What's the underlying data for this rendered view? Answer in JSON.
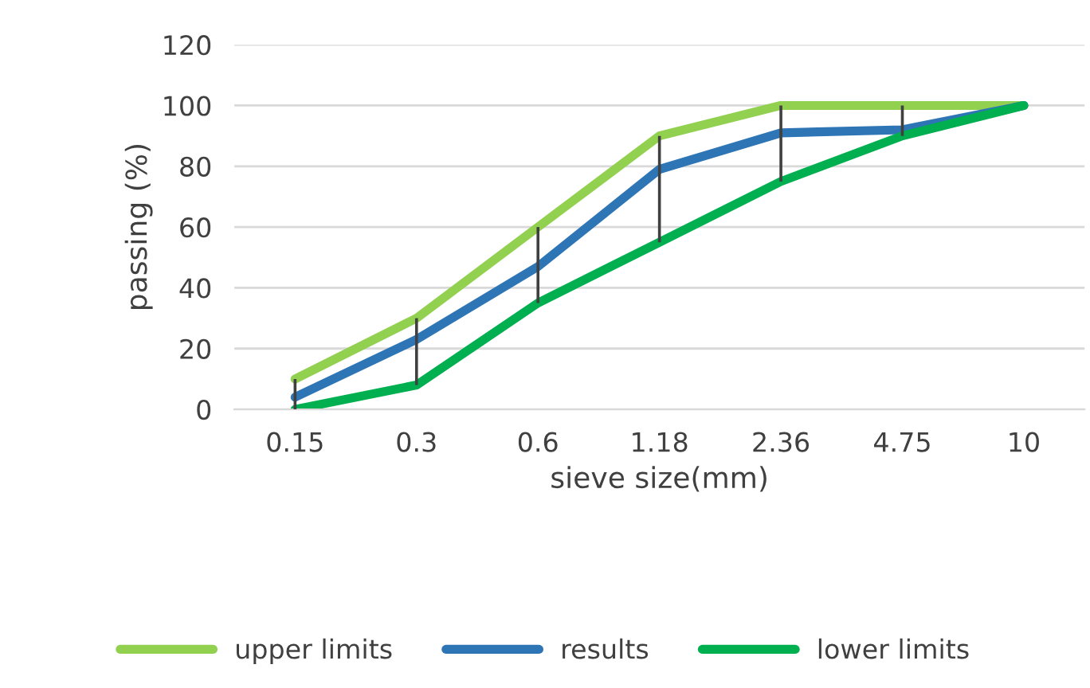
{
  "chart_data": {
    "type": "line",
    "xlabel": "sieve size(mm)",
    "ylabel": "passing (%)",
    "categories": [
      "0.15",
      "0.3",
      "0.6",
      "1.18",
      "2.36",
      "4.75",
      "10"
    ],
    "series": [
      {
        "name": "upper limits",
        "color": "#92d050",
        "values": [
          10,
          30,
          60,
          90,
          100,
          100,
          100
        ]
      },
      {
        "name": "results",
        "color": "#2e75b6",
        "values": [
          4,
          23,
          47,
          79,
          91,
          92,
          100
        ],
        "errors": [
          [
            0,
            10
          ],
          [
            8,
            30
          ],
          [
            35,
            60
          ],
          [
            55,
            90
          ],
          [
            75,
            100
          ],
          [
            90,
            100
          ],
          null
        ]
      },
      {
        "name": "lower limits",
        "color": "#00b050",
        "values": [
          0,
          8,
          35,
          55,
          75,
          90,
          100
        ]
      }
    ],
    "ylim": [
      0,
      120
    ],
    "yticks": [
      0,
      20,
      40,
      60,
      80,
      100,
      120
    ],
    "grid": "y",
    "legend": "bottom",
    "marker": "none",
    "line_style": "solid"
  }
}
